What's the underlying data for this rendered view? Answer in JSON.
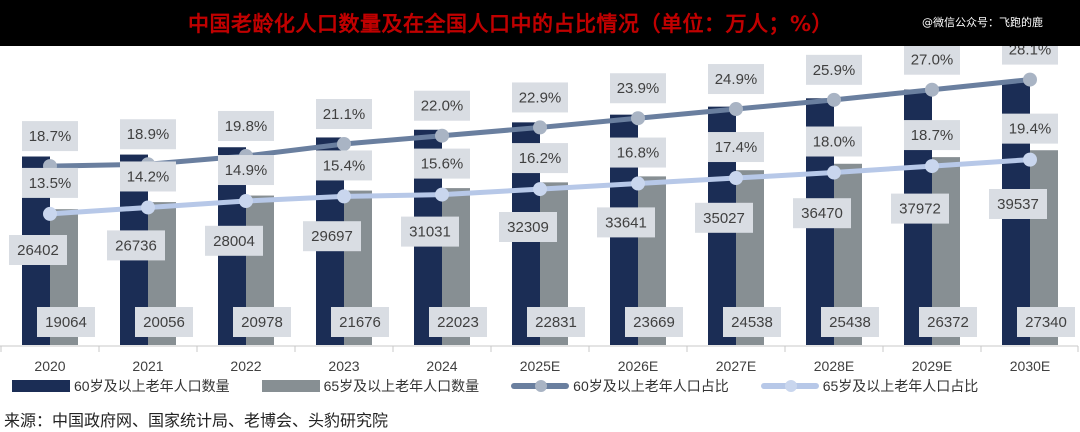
{
  "header": {
    "title": "中国老龄化人口数量及在全国人口中的占比情况（单位：万人；%）",
    "watermark": "@微信公众号：飞跑的鹿"
  },
  "chart_data": {
    "type": "bar+line",
    "title": "中国老龄化人口数量及在全国人口中的占比情况（单位：万人；%）",
    "categories": [
      "2020",
      "2021",
      "2022",
      "2023",
      "2024",
      "2025E",
      "2026E",
      "2027E",
      "2028E",
      "2029E",
      "2030E"
    ],
    "series": [
      {
        "name": "60岁及以上老年人口数量",
        "type": "bar",
        "color": "#1b2d55",
        "values": [
          26402,
          26736,
          28004,
          29697,
          31031,
          32309,
          33641,
          35027,
          36470,
          37972,
          39537
        ]
      },
      {
        "name": "65岁及以上老年人口数量",
        "type": "bar",
        "color": "#878f93",
        "values": [
          19064,
          20056,
          20978,
          21676,
          22023,
          22831,
          23669,
          24538,
          25438,
          26372,
          27340
        ]
      },
      {
        "name": "60岁及以上老年人口占比",
        "type": "line",
        "color": "#6a7f9f",
        "values": [
          18.7,
          18.9,
          19.8,
          21.1,
          22.0,
          22.9,
          23.9,
          24.9,
          25.9,
          27.0,
          28.1
        ]
      },
      {
        "name": "65岁及以上老年人口占比",
        "type": "line",
        "color": "#b7c8e8",
        "values": [
          13.5,
          14.2,
          14.9,
          15.4,
          15.6,
          16.2,
          16.8,
          17.4,
          18.0,
          18.7,
          19.4
        ]
      }
    ],
    "ylim_bar60": [
      -6200,
      40500
    ],
    "ylim_bar65": [
      0,
      37900
    ],
    "ylim_pct": [
      -0.75,
      28.6
    ],
    "label_bg": "#d9dde3",
    "legend_position": "bottom"
  },
  "source": "来源：中国政府网、国家统计局、老博会、头豹研究院"
}
